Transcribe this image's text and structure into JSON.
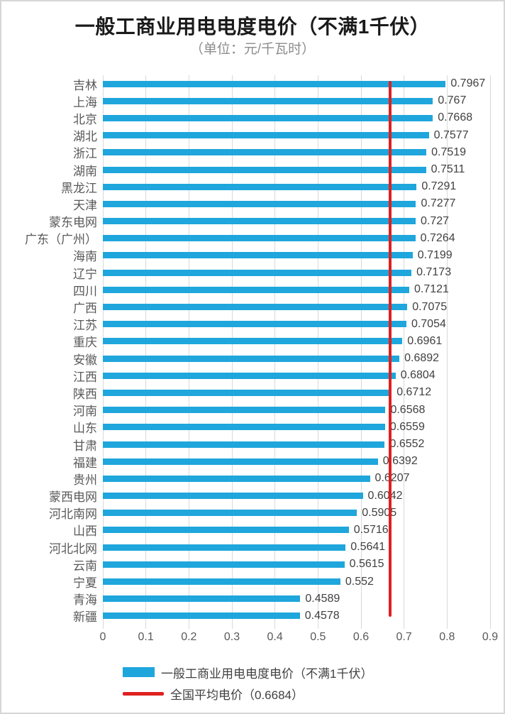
{
  "chart_data": {
    "type": "bar",
    "orientation": "horizontal",
    "title": "一般工商业用电电度电价（不满1千伏）",
    "subtitle": "（单位：元/千瓦时）",
    "categories": [
      "吉林",
      "上海",
      "北京",
      "湖北",
      "浙江",
      "湖南",
      "黑龙江",
      "天津",
      "蒙东电网",
      "广东（广州）",
      "海南",
      "辽宁",
      "四川",
      "广西",
      "江苏",
      "重庆",
      "安徽",
      "江西",
      "陕西",
      "河南",
      "山东",
      "甘肃",
      "福建",
      "贵州",
      "蒙西电网",
      "河北南网",
      "山西",
      "河北北网",
      "云南",
      "宁夏",
      "青海",
      "新疆"
    ],
    "values": [
      0.7967,
      0.767,
      0.7668,
      0.7577,
      0.7519,
      0.7511,
      0.7291,
      0.7277,
      0.727,
      0.7264,
      0.7199,
      0.7173,
      0.7121,
      0.7075,
      0.7054,
      0.6961,
      0.6892,
      0.6804,
      0.6712,
      0.6568,
      0.6559,
      0.6552,
      0.6392,
      0.6207,
      0.6042,
      0.5905,
      0.5716,
      0.5641,
      0.5615,
      0.552,
      0.4589,
      0.4578
    ],
    "value_labels": [
      "0.7967",
      "0.767",
      "0.7668",
      "0.7577",
      "0.7519",
      "0.7511",
      "0.7291",
      "0.7277",
      "0.727",
      "0.7264",
      "0.7199",
      "0.7173",
      "0.7121",
      "0.7075",
      "0.7054",
      "0.6961",
      "0.6892",
      "0.6804",
      "0.6712",
      "0.6568",
      "0.6559",
      "0.6552",
      "0.6392",
      "0.6207",
      "0.6042",
      "0.5905",
      "0.5716",
      "0.5641",
      "0.5615",
      "0.552",
      "0.4589",
      "0.4578"
    ],
    "xlim": [
      0,
      0.9
    ],
    "x_ticks": [
      "0",
      "0.1",
      "0.2",
      "0.3",
      "0.4",
      "0.5",
      "0.6",
      "0.7",
      "0.8",
      "0.9"
    ],
    "grid": true,
    "reference_line": {
      "value": 0.6684,
      "label": "全国平均电价（0.6684）"
    },
    "legend": {
      "position": "bottom-left",
      "entries": [
        {
          "swatch": "bar",
          "label": "一般工商业用电电度电价（不满1千伏）"
        },
        {
          "swatch": "line",
          "label": "全国平均电价（0.6684）"
        }
      ]
    },
    "colors": {
      "bar": "#1fa6dc",
      "reference_line": "#e02020",
      "grid": "#d9d9d9",
      "tick_label": "#595959",
      "category_label": "#595959",
      "value_label": "#404040",
      "title": "#1a1a1a",
      "subtitle": "#8c8c8c",
      "frame_border": "#d6d6d6"
    }
  }
}
